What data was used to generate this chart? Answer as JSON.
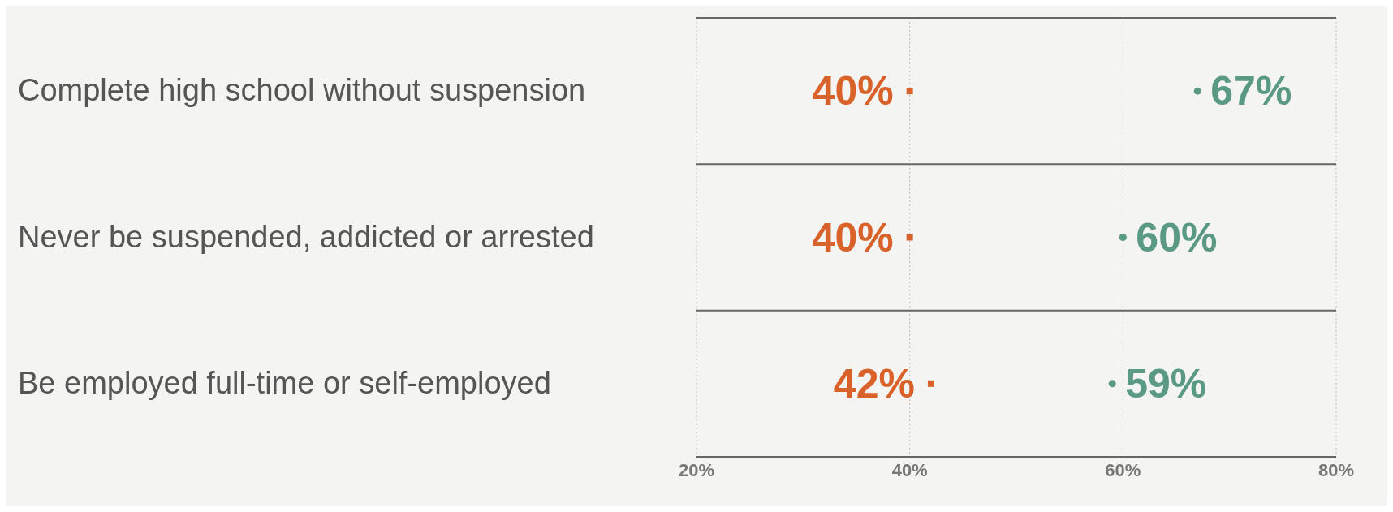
{
  "chart_data": {
    "type": "scatter",
    "orientation": "horizontal",
    "categories": [
      "Complete high school without suspension",
      "Never be suspended, addicted or arrested",
      "Be employed full-time or self-employed"
    ],
    "series": [
      {
        "color": "#d9622b",
        "marker": "square",
        "values": [
          40,
          40,
          42
        ],
        "value_labels": [
          "40%",
          "40%",
          "42%"
        ]
      },
      {
        "color": "#5a9a84",
        "marker": "circle",
        "values": [
          67,
          60,
          59
        ],
        "value_labels": [
          "67%",
          "60%",
          "59%"
        ]
      }
    ],
    "xlim": [
      20,
      80
    ],
    "xticks": [
      {
        "value": 20,
        "label": "20%"
      },
      {
        "value": 40,
        "label": "40%"
      },
      {
        "value": 60,
        "label": "60%"
      },
      {
        "value": 80,
        "label": "80%"
      }
    ],
    "grid": true
  }
}
